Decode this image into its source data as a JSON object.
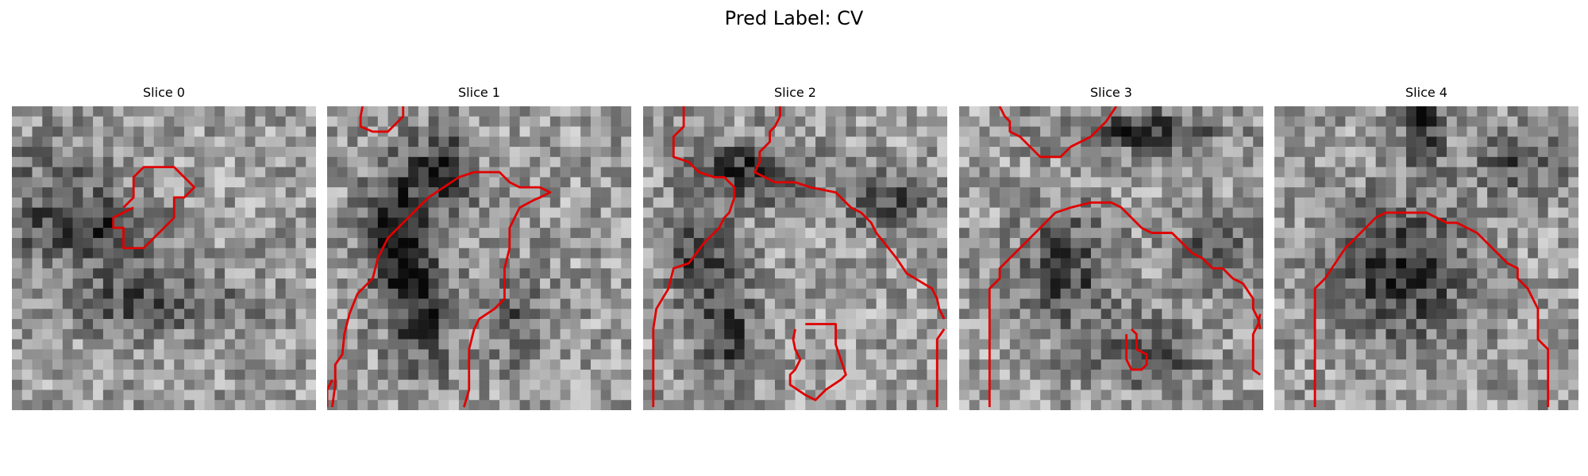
{
  "figure": {
    "title": "Pred Label: CV"
  },
  "contour_color": "#e00000",
  "slices": [
    {
      "title": "Slice 0",
      "contours": [
        [
          [
            12,
            10
          ],
          [
            10,
            11
          ],
          [
            10,
            12
          ],
          [
            11,
            12
          ],
          [
            11,
            14
          ],
          [
            13,
            14
          ],
          [
            14,
            13
          ],
          [
            15,
            12
          ],
          [
            16,
            11
          ],
          [
            16,
            9
          ],
          [
            17,
            9
          ],
          [
            18,
            8
          ],
          [
            17,
            7
          ],
          [
            16,
            6
          ],
          [
            13,
            6
          ],
          [
            12,
            7
          ],
          [
            12,
            9
          ],
          [
            11,
            10
          ]
        ]
      ]
    },
    {
      "title": "Slice 1",
      "contours": [
        [
          [
            3.5,
            0
          ],
          [
            3.3,
            1
          ],
          [
            3.3,
            2
          ],
          [
            4.5,
            2.5
          ],
          [
            6,
            2.5
          ],
          [
            7,
            1.5
          ],
          [
            7.5,
            1
          ],
          [
            7.5,
            0
          ]
        ],
        [
          [
            0.5,
            29.7
          ],
          [
            0.8,
            27.5
          ],
          [
            0.8,
            25.5
          ],
          [
            1.5,
            24.5
          ],
          [
            1.7,
            22.5
          ],
          [
            2.2,
            20.5
          ],
          [
            3,
            18.5
          ],
          [
            4.5,
            17
          ],
          [
            5,
            15
          ],
          [
            6,
            13
          ],
          [
            7,
            12
          ],
          [
            8,
            11
          ],
          [
            9,
            10
          ],
          [
            10,
            9
          ],
          [
            11.5,
            8
          ],
          [
            13,
            7
          ],
          [
            14.5,
            6.5
          ],
          [
            17,
            6.5
          ],
          [
            18,
            7.5
          ],
          [
            19,
            8
          ],
          [
            21,
            8
          ],
          [
            22,
            8.5
          ],
          [
            21,
            9
          ],
          [
            20.5,
            9.2
          ],
          [
            19,
            10
          ],
          [
            18.5,
            11
          ],
          [
            18,
            12
          ],
          [
            18,
            14
          ],
          [
            17.5,
            16
          ],
          [
            17.5,
            19
          ],
          [
            16.5,
            20
          ],
          [
            15,
            21
          ],
          [
            14.5,
            22
          ],
          [
            14,
            24
          ],
          [
            14,
            26
          ],
          [
            14,
            28
          ],
          [
            13.5,
            29.7
          ]
        ],
        [
          [
            0.5,
            27
          ],
          [
            0,
            28
          ],
          [
            0,
            29.7
          ]
        ]
      ]
    },
    {
      "title": "Slice 2",
      "contours": [
        [
          [
            4,
            0
          ],
          [
            4,
            2
          ],
          [
            3,
            3
          ],
          [
            3,
            5
          ],
          [
            4.5,
            5.5
          ],
          [
            5.5,
            6.5
          ],
          [
            7,
            7
          ],
          [
            8,
            7
          ],
          [
            9,
            8
          ],
          [
            9,
            9
          ],
          [
            8.5,
            10.5
          ],
          [
            8,
            11
          ],
          [
            7.5,
            12
          ],
          [
            6,
            13.5
          ],
          [
            4.5,
            15.5
          ],
          [
            3,
            16
          ],
          [
            2.5,
            18
          ],
          [
            1.3,
            20
          ],
          [
            1,
            22
          ],
          [
            1,
            26
          ],
          [
            1,
            29.7
          ]
        ],
        [
          [
            13.5,
            0
          ],
          [
            13.5,
            1
          ],
          [
            13,
            2
          ],
          [
            12.5,
            2.5
          ],
          [
            12.5,
            3.5
          ],
          [
            11.5,
            4.5
          ],
          [
            11.5,
            5.5
          ],
          [
            11,
            6.5
          ],
          [
            12,
            7
          ],
          [
            13,
            7.5
          ],
          [
            15,
            7.5
          ],
          [
            16.5,
            8
          ],
          [
            19,
            8.5
          ],
          [
            20.5,
            10
          ],
          [
            21.5,
            10.5
          ],
          [
            22.5,
            11.5
          ],
          [
            23,
            12.5
          ],
          [
            25,
            15
          ],
          [
            26,
            16.5
          ],
          [
            28.5,
            18
          ],
          [
            29,
            19
          ],
          [
            29.2,
            20
          ],
          [
            29.7,
            21
          ]
        ],
        [
          [
            29.7,
            22
          ],
          [
            29,
            23
          ],
          [
            29,
            26
          ],
          [
            29,
            29.7
          ]
        ],
        [
          [
            15,
            22
          ],
          [
            14.8,
            23
          ],
          [
            15,
            24
          ],
          [
            15.5,
            25
          ],
          [
            15,
            26
          ],
          [
            14.5,
            26.5
          ],
          [
            14.5,
            27.5
          ],
          [
            16,
            28.5
          ],
          [
            17,
            29
          ],
          [
            18,
            28
          ],
          [
            19.5,
            27
          ],
          [
            20,
            26.5
          ],
          [
            19.5,
            25
          ],
          [
            19,
            23.5
          ],
          [
            19,
            22
          ],
          [
            19,
            21.5
          ],
          [
            17.5,
            21.5
          ],
          [
            16,
            21.5
          ]
        ]
      ]
    },
    {
      "title": "Slice 3",
      "contours": [
        [
          [
            4,
            0
          ],
          [
            4.5,
            1
          ],
          [
            5,
            1.5
          ],
          [
            5,
            2.5
          ],
          [
            6,
            3
          ],
          [
            7,
            4
          ],
          [
            8,
            5
          ],
          [
            10,
            5
          ],
          [
            11,
            4
          ],
          [
            13,
            3
          ],
          [
            14,
            2
          ],
          [
            14.5,
            1.5
          ],
          [
            15.5,
            0
          ]
        ],
        [
          [
            3,
            29.7
          ],
          [
            3,
            27
          ],
          [
            3,
            18
          ],
          [
            4,
            17
          ],
          [
            4,
            16
          ],
          [
            5,
            15
          ],
          [
            6,
            14
          ],
          [
            7,
            13
          ],
          [
            8,
            12
          ],
          [
            9.5,
            10.5
          ],
          [
            11,
            10
          ],
          [
            13,
            9.5
          ],
          [
            15,
            9.5
          ],
          [
            16,
            10
          ],
          [
            17,
            11
          ],
          [
            18,
            12
          ],
          [
            19,
            12.5
          ],
          [
            20,
            12.5
          ],
          [
            21,
            12.5
          ],
          [
            22,
            13.5
          ],
          [
            23,
            14.5
          ],
          [
            24,
            15
          ],
          [
            25,
            16
          ],
          [
            26,
            16
          ],
          [
            27,
            17
          ],
          [
            28,
            17.5
          ],
          [
            29,
            19
          ],
          [
            29,
            20
          ],
          [
            29.5,
            21
          ],
          [
            29.7,
            22
          ]
        ],
        [
          [
            29.7,
            20.5
          ],
          [
            29.5,
            21.5
          ],
          [
            29,
            22.5
          ],
          [
            29,
            25
          ],
          [
            29,
            26
          ],
          [
            29.7,
            26.5
          ]
        ],
        [
          [
            16.5,
            22.5
          ],
          [
            16.5,
            24
          ],
          [
            16.5,
            25
          ],
          [
            17,
            26
          ],
          [
            18,
            26
          ],
          [
            18.5,
            25.5
          ],
          [
            18.5,
            24.5
          ],
          [
            17.5,
            24
          ],
          [
            17.5,
            22.5
          ],
          [
            17,
            22
          ]
        ]
      ]
    },
    {
      "title": "Slice 4",
      "contours": [
        [
          [
            4,
            29.7
          ],
          [
            4,
            18
          ],
          [
            4.5,
            17.5
          ],
          [
            5,
            17
          ],
          [
            6,
            15.5
          ],
          [
            7,
            14
          ],
          [
            8,
            13
          ],
          [
            9,
            12
          ],
          [
            10,
            11
          ],
          [
            11,
            10.5
          ],
          [
            12,
            10.5
          ],
          [
            15,
            10.5
          ],
          [
            16,
            11
          ],
          [
            17,
            11.5
          ],
          [
            18,
            11.5
          ],
          [
            19,
            12
          ],
          [
            20,
            12.5
          ],
          [
            21,
            13.5
          ],
          [
            22,
            14.5
          ],
          [
            23,
            15.5
          ],
          [
            24,
            16
          ],
          [
            24,
            17
          ],
          [
            25,
            18
          ],
          [
            25.5,
            19
          ],
          [
            26,
            20
          ],
          [
            26,
            22
          ],
          [
            26,
            23
          ],
          [
            27,
            24
          ],
          [
            27,
            25
          ],
          [
            27,
            27
          ],
          [
            27,
            29.7
          ]
        ]
      ]
    }
  ]
}
